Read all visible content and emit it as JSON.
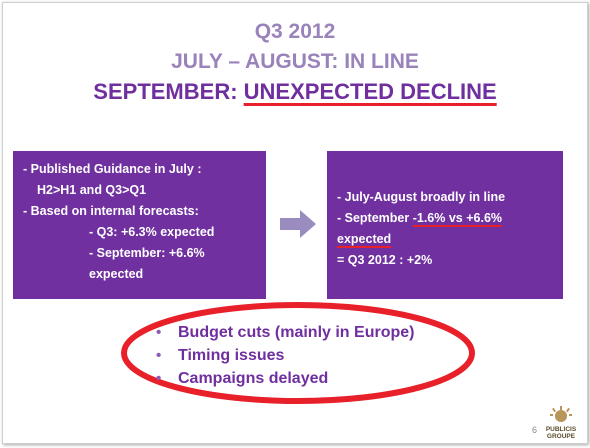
{
  "title": {
    "line1": "Q3 2012",
    "line2": "JULY – AUGUST: IN LINE",
    "line3_prefix": "SEPTEMBER: ",
    "line3_emphasis": "UNEXPECTED DECLINE"
  },
  "left_box": {
    "line1": "- Published Guidance in July :",
    "line2": "H2>H1 and Q3>Q1",
    "line3": "- Based on internal forecasts:",
    "line4": "- Q3: +6.3% expected",
    "line5": "- September: +6.6% expected"
  },
  "right_box": {
    "line1": "- July-August broadly in line",
    "line2_prefix": "- September ",
    "line2_emphasis": "-1.6% vs +6.6% expected",
    "line3": "= Q3 2012 : +2%"
  },
  "bullets": [
    "Budget cuts (mainly in Europe)",
    "Timing issues",
    "Campaigns delayed"
  ],
  "bullet_symbol": "•",
  "page_number": "6",
  "logo": {
    "text_line1": "PUBLICIS",
    "text_line2": "GROUPE"
  },
  "colors": {
    "purple": "#7030a0",
    "title_light": "#9a82bb",
    "title_dark": "#6f2f9f",
    "red": "#e8202a",
    "arrow": "#9b8cbf"
  }
}
